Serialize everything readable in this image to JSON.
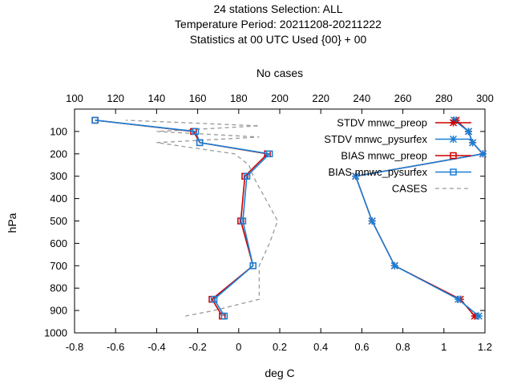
{
  "titles": [
    "24 stations Selection: ALL",
    "Temperature  Period: 20211208-20211222",
    "Statistics at 00 UTC  Used {00} + 00"
  ],
  "chart_data": {
    "type": "line",
    "xlabel": "deg C",
    "x2label": "No cases",
    "ylabel": "hPa",
    "xlim": [
      -0.8,
      1.2
    ],
    "x2lim": [
      100,
      300
    ],
    "ylim": [
      1000,
      0
    ],
    "xticks": [
      "-0.8",
      "-0.6",
      "-0.4",
      "-0.2",
      "0",
      "0.2",
      "0.4",
      "0.6",
      "0.8",
      "1",
      "1.2"
    ],
    "x2ticks": [
      "100",
      "120",
      "140",
      "160",
      "180",
      "200",
      "220",
      "240",
      "260",
      "280",
      "300"
    ],
    "yticks": [
      "100",
      "200",
      "300",
      "400",
      "500",
      "600",
      "700",
      "800",
      "900",
      "1000"
    ],
    "legend_position": "top-right",
    "series": [
      {
        "name": "STDV mnwc_preop",
        "color": "#cc0000",
        "marker": "x",
        "axis": "bottom",
        "points": [
          [
            1.15,
            925
          ],
          [
            1.08,
            850
          ],
          [
            0.76,
            700
          ],
          [
            0.65,
            500
          ],
          [
            0.57,
            300
          ],
          [
            1.19,
            200
          ],
          [
            1.14,
            150
          ],
          [
            1.12,
            100
          ],
          [
            1.06,
            50
          ]
        ]
      },
      {
        "name": "STDV mnwc_pysurfex",
        "color": "#1a7fd4",
        "marker": "x",
        "axis": "bottom",
        "points": [
          [
            1.17,
            925
          ],
          [
            1.07,
            850
          ],
          [
            0.76,
            700
          ],
          [
            0.65,
            500
          ],
          [
            0.57,
            300
          ],
          [
            1.19,
            200
          ],
          [
            1.14,
            150
          ],
          [
            1.12,
            100
          ],
          [
            1.05,
            50
          ]
        ]
      },
      {
        "name": "BIAS mnwc_preop",
        "color": "#cc0000",
        "marker": "square",
        "axis": "bottom",
        "points": [
          [
            -0.08,
            925
          ],
          [
            -0.13,
            850
          ],
          [
            0.07,
            700
          ],
          [
            0.01,
            500
          ],
          [
            0.03,
            300
          ],
          [
            0.14,
            200
          ],
          [
            -0.19,
            150
          ],
          [
            -0.22,
            100
          ],
          [
            -0.7,
            50
          ]
        ]
      },
      {
        "name": "BIAS mnwc_pysurfex",
        "color": "#1a7fd4",
        "marker": "square",
        "axis": "bottom",
        "points": [
          [
            -0.07,
            925
          ],
          [
            -0.12,
            850
          ],
          [
            0.07,
            700
          ],
          [
            0.02,
            500
          ],
          [
            0.04,
            300
          ],
          [
            0.15,
            200
          ],
          [
            -0.19,
            150
          ],
          [
            -0.21,
            100
          ],
          [
            -0.7,
            50
          ]
        ]
      },
      {
        "name": "CASES",
        "color": "#9a9a9a",
        "marker": "none",
        "dashed": true,
        "axis": "top",
        "points": [
          [
            154,
            925
          ],
          [
            168,
            900
          ],
          [
            190,
            850
          ],
          [
            190,
            700
          ],
          [
            195,
            600
          ],
          [
            199,
            500
          ],
          [
            193,
            400
          ],
          [
            187,
            300
          ],
          [
            185,
            250
          ],
          [
            178,
            200
          ],
          [
            140,
            150
          ],
          [
            190,
            125
          ],
          [
            140,
            100
          ],
          [
            190,
            75
          ],
          [
            125,
            50
          ]
        ]
      }
    ]
  }
}
